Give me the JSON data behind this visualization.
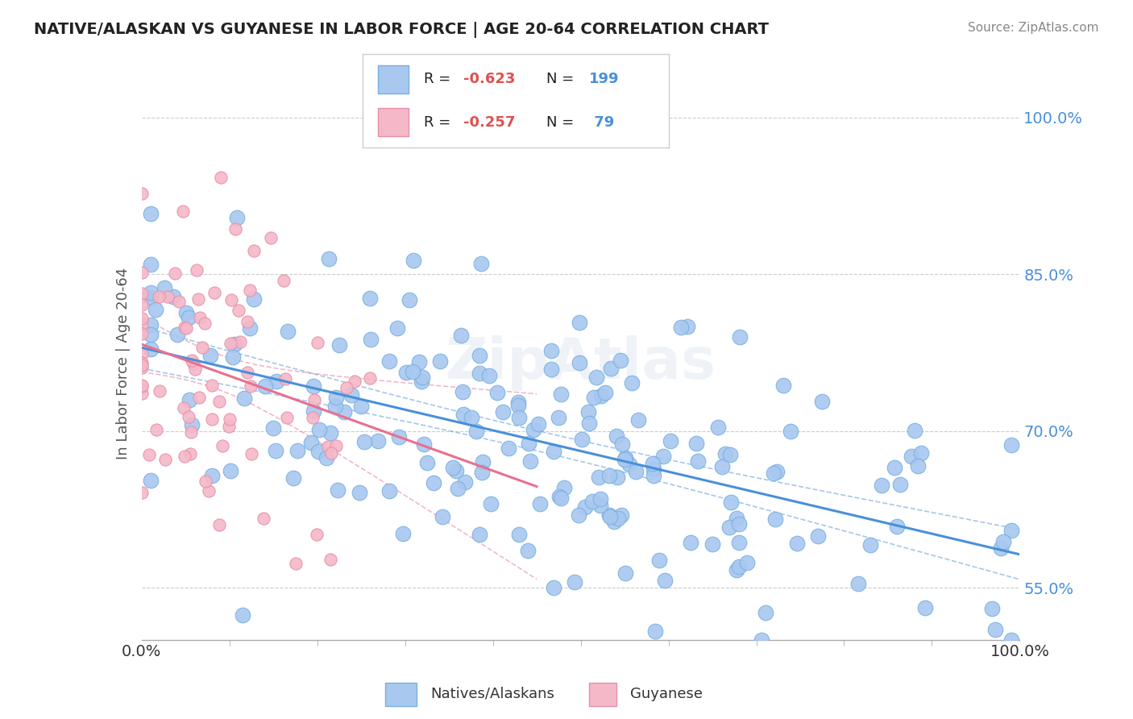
{
  "title": "NATIVE/ALASKAN VS GUYANESE IN LABOR FORCE | AGE 20-64 CORRELATION CHART",
  "source": "Source: ZipAtlas.com",
  "xlabel": "",
  "ylabel": "In Labor Force | Age 20-64",
  "xmin": 0.0,
  "xmax": 1.0,
  "ymin": 0.5,
  "ymax": 1.03,
  "yticks": [
    0.55,
    0.7,
    0.85,
    1.0
  ],
  "ytick_labels": [
    "55.0%",
    "70.0%",
    "85.0%",
    "100.0%"
  ],
  "xtick_labels": [
    "0.0%",
    "100.0%"
  ],
  "blue_R": -0.623,
  "blue_N": 199,
  "pink_R": -0.257,
  "pink_N": 79,
  "blue_color": "#a8c8f0",
  "blue_edge": "#7ab0e0",
  "pink_color": "#f4b8c8",
  "pink_edge": "#e890a8",
  "blue_line_color": "#4a90d9",
  "pink_line_color": "#e87090",
  "watermark": "ZipAtlas",
  "background_color": "#ffffff",
  "legend_R_color": "#e05050",
  "legend_N_color": "#4a90d9"
}
